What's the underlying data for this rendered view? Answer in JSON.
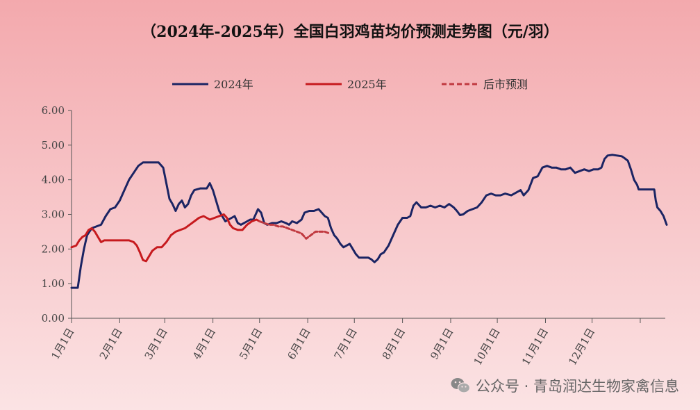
{
  "chart_data": {
    "type": "line",
    "title": "（2024年-2025年）全国白羽鸡苗均价预测走势图（元/羽）",
    "xlabel": "",
    "ylabel": "",
    "ylim": [
      0,
      6
    ],
    "yticks": [
      "0.00",
      "1.00",
      "2.00",
      "3.00",
      "4.00",
      "5.00",
      "6.00"
    ],
    "x_tick_labels": [
      "1月1日",
      "2月1日",
      "3月1日",
      "4月1日",
      "5月1日",
      "6月1日",
      "7月1日",
      "8月1日",
      "9月1日",
      "10月1日",
      "11月1日",
      "12月1日"
    ],
    "x_unit": "day of year",
    "xlim": [
      1,
      366
    ],
    "legend_position": "top-center",
    "series": [
      {
        "name": "2024年",
        "color": "#1b2463",
        "style": "solid",
        "points": [
          [
            1,
            0.88
          ],
          [
            5,
            0.88
          ],
          [
            7,
            1.5
          ],
          [
            9,
            2.0
          ],
          [
            11,
            2.4
          ],
          [
            14,
            2.6
          ],
          [
            17,
            2.65
          ],
          [
            20,
            2.7
          ],
          [
            23,
            2.95
          ],
          [
            26,
            3.15
          ],
          [
            29,
            3.2
          ],
          [
            32,
            3.4
          ],
          [
            35,
            3.7
          ],
          [
            38,
            4.0
          ],
          [
            41,
            4.2
          ],
          [
            44,
            4.4
          ],
          [
            47,
            4.5
          ],
          [
            52,
            4.5
          ],
          [
            57,
            4.5
          ],
          [
            60,
            4.35
          ],
          [
            62,
            3.9
          ],
          [
            64,
            3.45
          ],
          [
            66,
            3.3
          ],
          [
            68,
            3.1
          ],
          [
            70,
            3.3
          ],
          [
            72,
            3.4
          ],
          [
            74,
            3.2
          ],
          [
            76,
            3.3
          ],
          [
            78,
            3.55
          ],
          [
            80,
            3.7
          ],
          [
            84,
            3.75
          ],
          [
            88,
            3.75
          ],
          [
            90,
            3.9
          ],
          [
            92,
            3.7
          ],
          [
            94,
            3.4
          ],
          [
            96,
            3.1
          ],
          [
            98,
            2.95
          ],
          [
            100,
            2.8
          ],
          [
            102,
            2.85
          ],
          [
            104,
            2.9
          ],
          [
            106,
            2.95
          ],
          [
            108,
            2.75
          ],
          [
            110,
            2.7
          ],
          [
            112,
            2.75
          ],
          [
            114,
            2.8
          ],
          [
            116,
            2.85
          ],
          [
            118,
            2.85
          ],
          [
            120,
            3.05
          ],
          [
            121,
            3.15
          ],
          [
            123,
            3.05
          ],
          [
            125,
            2.75
          ],
          [
            127,
            2.7
          ],
          [
            130,
            2.75
          ],
          [
            133,
            2.75
          ],
          [
            136,
            2.8
          ],
          [
            139,
            2.75
          ],
          [
            141,
            2.7
          ],
          [
            143,
            2.8
          ],
          [
            146,
            2.75
          ],
          [
            149,
            2.85
          ],
          [
            151,
            3.05
          ],
          [
            154,
            3.1
          ],
          [
            157,
            3.1
          ],
          [
            160,
            3.15
          ],
          [
            162,
            3.05
          ],
          [
            164,
            2.95
          ],
          [
            166,
            2.9
          ],
          [
            168,
            2.6
          ],
          [
            170,
            2.4
          ],
          [
            172,
            2.3
          ],
          [
            174,
            2.15
          ],
          [
            176,
            2.05
          ],
          [
            180,
            2.15
          ],
          [
            182,
            2.0
          ],
          [
            184,
            1.85
          ],
          [
            186,
            1.75
          ],
          [
            188,
            1.75
          ],
          [
            192,
            1.75
          ],
          [
            194,
            1.7
          ],
          [
            196,
            1.62
          ],
          [
            198,
            1.7
          ],
          [
            200,
            1.85
          ],
          [
            202,
            1.9
          ],
          [
            205,
            2.1
          ],
          [
            208,
            2.4
          ],
          [
            211,
            2.7
          ],
          [
            214,
            2.9
          ],
          [
            217,
            2.9
          ],
          [
            219,
            2.95
          ],
          [
            221,
            3.25
          ],
          [
            223,
            3.35
          ],
          [
            226,
            3.2
          ],
          [
            229,
            3.2
          ],
          [
            232,
            3.25
          ],
          [
            235,
            3.2
          ],
          [
            238,
            3.25
          ],
          [
            241,
            3.2
          ],
          [
            244,
            3.3
          ],
          [
            247,
            3.2
          ],
          [
            249,
            3.1
          ],
          [
            251,
            2.98
          ],
          [
            253,
            3.0
          ],
          [
            256,
            3.1
          ],
          [
            259,
            3.15
          ],
          [
            262,
            3.2
          ],
          [
            265,
            3.35
          ],
          [
            268,
            3.55
          ],
          [
            271,
            3.6
          ],
          [
            274,
            3.55
          ],
          [
            277,
            3.55
          ],
          [
            280,
            3.6
          ],
          [
            284,
            3.55
          ],
          [
            288,
            3.65
          ],
          [
            290,
            3.7
          ],
          [
            292,
            3.55
          ],
          [
            295,
            3.7
          ],
          [
            298,
            4.05
          ],
          [
            301,
            4.1
          ],
          [
            304,
            4.35
          ],
          [
            307,
            4.4
          ],
          [
            310,
            4.35
          ],
          [
            313,
            4.35
          ],
          [
            316,
            4.3
          ],
          [
            319,
            4.3
          ],
          [
            322,
            4.35
          ],
          [
            325,
            4.2
          ],
          [
            328,
            4.25
          ],
          [
            331,
            4.3
          ],
          [
            334,
            4.25
          ],
          [
            337,
            4.3
          ],
          [
            340,
            4.3
          ],
          [
            342,
            4.35
          ],
          [
            344,
            4.6
          ],
          [
            346,
            4.7
          ],
          [
            349,
            4.72
          ],
          [
            352,
            4.7
          ],
          [
            355,
            4.68
          ],
          [
            357,
            4.62
          ],
          [
            359,
            4.55
          ],
          [
            361,
            4.3
          ],
          [
            363,
            4.0
          ],
          [
            365,
            3.85
          ],
          [
            366,
            3.72
          ],
          [
            372,
            3.72
          ],
          [
            376,
            3.72
          ],
          [
            377,
            3.4
          ],
          [
            378,
            3.2
          ],
          [
            380,
            3.1
          ],
          [
            382,
            2.95
          ],
          [
            384,
            2.7
          ]
        ]
      },
      {
        "name": "2025年",
        "color": "#c61a1e",
        "style": "solid",
        "points": [
          [
            1,
            2.05
          ],
          [
            4,
            2.1
          ],
          [
            6,
            2.25
          ],
          [
            8,
            2.35
          ],
          [
            10,
            2.4
          ],
          [
            12,
            2.55
          ],
          [
            14,
            2.6
          ],
          [
            16,
            2.5
          ],
          [
            18,
            2.35
          ],
          [
            20,
            2.2
          ],
          [
            22,
            2.25
          ],
          [
            26,
            2.25
          ],
          [
            30,
            2.25
          ],
          [
            34,
            2.25
          ],
          [
            38,
            2.25
          ],
          [
            41,
            2.2
          ],
          [
            43,
            2.1
          ],
          [
            45,
            1.9
          ],
          [
            47,
            1.68
          ],
          [
            49,
            1.65
          ],
          [
            51,
            1.8
          ],
          [
            53,
            1.95
          ],
          [
            56,
            2.05
          ],
          [
            59,
            2.05
          ],
          [
            62,
            2.2
          ],
          [
            65,
            2.4
          ],
          [
            68,
            2.5
          ],
          [
            71,
            2.55
          ],
          [
            74,
            2.6
          ],
          [
            77,
            2.7
          ],
          [
            80,
            2.8
          ],
          [
            83,
            2.9
          ],
          [
            86,
            2.95
          ],
          [
            88,
            2.9
          ],
          [
            90,
            2.85
          ],
          [
            93,
            2.9
          ],
          [
            96,
            2.95
          ],
          [
            99,
            3.0
          ],
          [
            101,
            2.9
          ],
          [
            103,
            2.7
          ],
          [
            105,
            2.6
          ],
          [
            108,
            2.55
          ],
          [
            111,
            2.55
          ],
          [
            114,
            2.7
          ],
          [
            117,
            2.8
          ],
          [
            120,
            2.85
          ],
          [
            122,
            2.8
          ]
        ]
      },
      {
        "name": "后市预测",
        "color": "#c0393f",
        "style": "dashed",
        "points": [
          [
            122,
            2.8
          ],
          [
            125,
            2.75
          ],
          [
            128,
            2.7
          ],
          [
            131,
            2.7
          ],
          [
            134,
            2.65
          ],
          [
            137,
            2.65
          ],
          [
            140,
            2.6
          ],
          [
            143,
            2.55
          ],
          [
            146,
            2.5
          ],
          [
            149,
            2.45
          ],
          [
            152,
            2.3
          ],
          [
            155,
            2.4
          ],
          [
            158,
            2.5
          ],
          [
            161,
            2.5
          ],
          [
            164,
            2.5
          ],
          [
            167,
            2.45
          ]
        ]
      }
    ]
  },
  "watermark": {
    "text": "公众号 · 青岛润达生物家禽信息",
    "icon": "wechat-icon"
  }
}
